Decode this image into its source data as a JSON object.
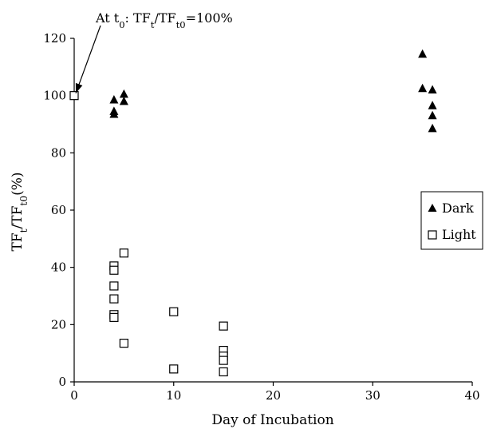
{
  "chart_data": {
    "type": "scatter",
    "xlabel": "Day of Incubation",
    "ylabel": {
      "parts": [
        "TF",
        "t",
        "/TF",
        "t0",
        "(%)"
      ]
    },
    "xlim": [
      0,
      40
    ],
    "ylim": [
      0,
      120
    ],
    "xticks": [
      0,
      10,
      20,
      30,
      40
    ],
    "yticks": [
      0,
      20,
      40,
      60,
      80,
      100,
      120
    ],
    "grid": false,
    "legend_position": "right",
    "annotation": {
      "parts": [
        "At t",
        "0",
        ": TF",
        "t",
        "/TF",
        "t0",
        "=100%"
      ],
      "points_to": [
        0,
        100
      ]
    },
    "series": [
      {
        "name": "Dark",
        "marker": "filled-triangle",
        "color": "#000000",
        "points": [
          [
            0,
            100
          ],
          [
            4,
            98.5
          ],
          [
            4,
            94.5
          ],
          [
            4,
            93.5
          ],
          [
            5,
            100.5
          ],
          [
            5,
            98
          ],
          [
            35,
            114.5
          ],
          [
            35,
            102.5
          ],
          [
            36,
            102
          ],
          [
            36,
            96.5
          ],
          [
            36,
            93
          ],
          [
            36,
            88.5
          ]
        ]
      },
      {
        "name": "Light",
        "marker": "open-square",
        "color": "#000000",
        "points": [
          [
            0,
            100
          ],
          [
            4,
            40.5
          ],
          [
            4,
            39
          ],
          [
            4,
            33.5
          ],
          [
            4,
            29
          ],
          [
            4,
            23.5
          ],
          [
            4,
            22.5
          ],
          [
            5,
            45
          ],
          [
            5,
            13.5
          ],
          [
            10,
            24.5
          ],
          [
            10,
            4.5
          ],
          [
            15,
            19.5
          ],
          [
            15,
            11
          ],
          [
            15,
            9
          ],
          [
            15,
            7.5
          ],
          [
            15,
            3.5
          ]
        ]
      }
    ]
  }
}
